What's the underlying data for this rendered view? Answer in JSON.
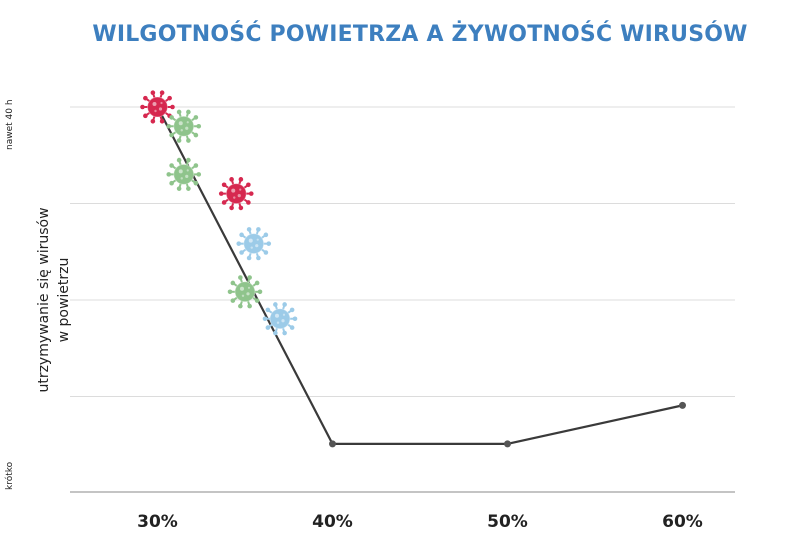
{
  "chart_data": {
    "type": "line",
    "title": "WILGOTNOŚĆ POWIETRZA A ŻYWOTNOŚĆ WIRUSÓW",
    "xlabel": "",
    "ylabel": [
      "utrzymywanie się wirusów",
      "w powietrzu"
    ],
    "y_top_label": "nawet 40 h",
    "y_bottom_label": "krótko",
    "x_ticks": [
      "30%",
      "40%",
      "50%",
      "60%"
    ],
    "x": [
      30,
      40,
      50,
      60
    ],
    "y": [
      40,
      5,
      5,
      9
    ],
    "xlim": [
      25,
      63
    ],
    "ylim": [
      0,
      40
    ],
    "grid": true,
    "virus_markers": [
      {
        "x": 30.0,
        "y": 40.0,
        "color": "#d6284f"
      },
      {
        "x": 31.5,
        "y": 38.0,
        "color": "#8fc48c"
      },
      {
        "x": 31.5,
        "y": 33.0,
        "color": "#8fc48c"
      },
      {
        "x": 34.5,
        "y": 31.0,
        "color": "#d6284f"
      },
      {
        "x": 35.5,
        "y": 25.8,
        "color": "#9ccbe8"
      },
      {
        "x": 35.0,
        "y": 20.8,
        "color": "#8fc48c"
      },
      {
        "x": 37.0,
        "y": 18.0,
        "color": "#9ccbe8"
      }
    ]
  }
}
